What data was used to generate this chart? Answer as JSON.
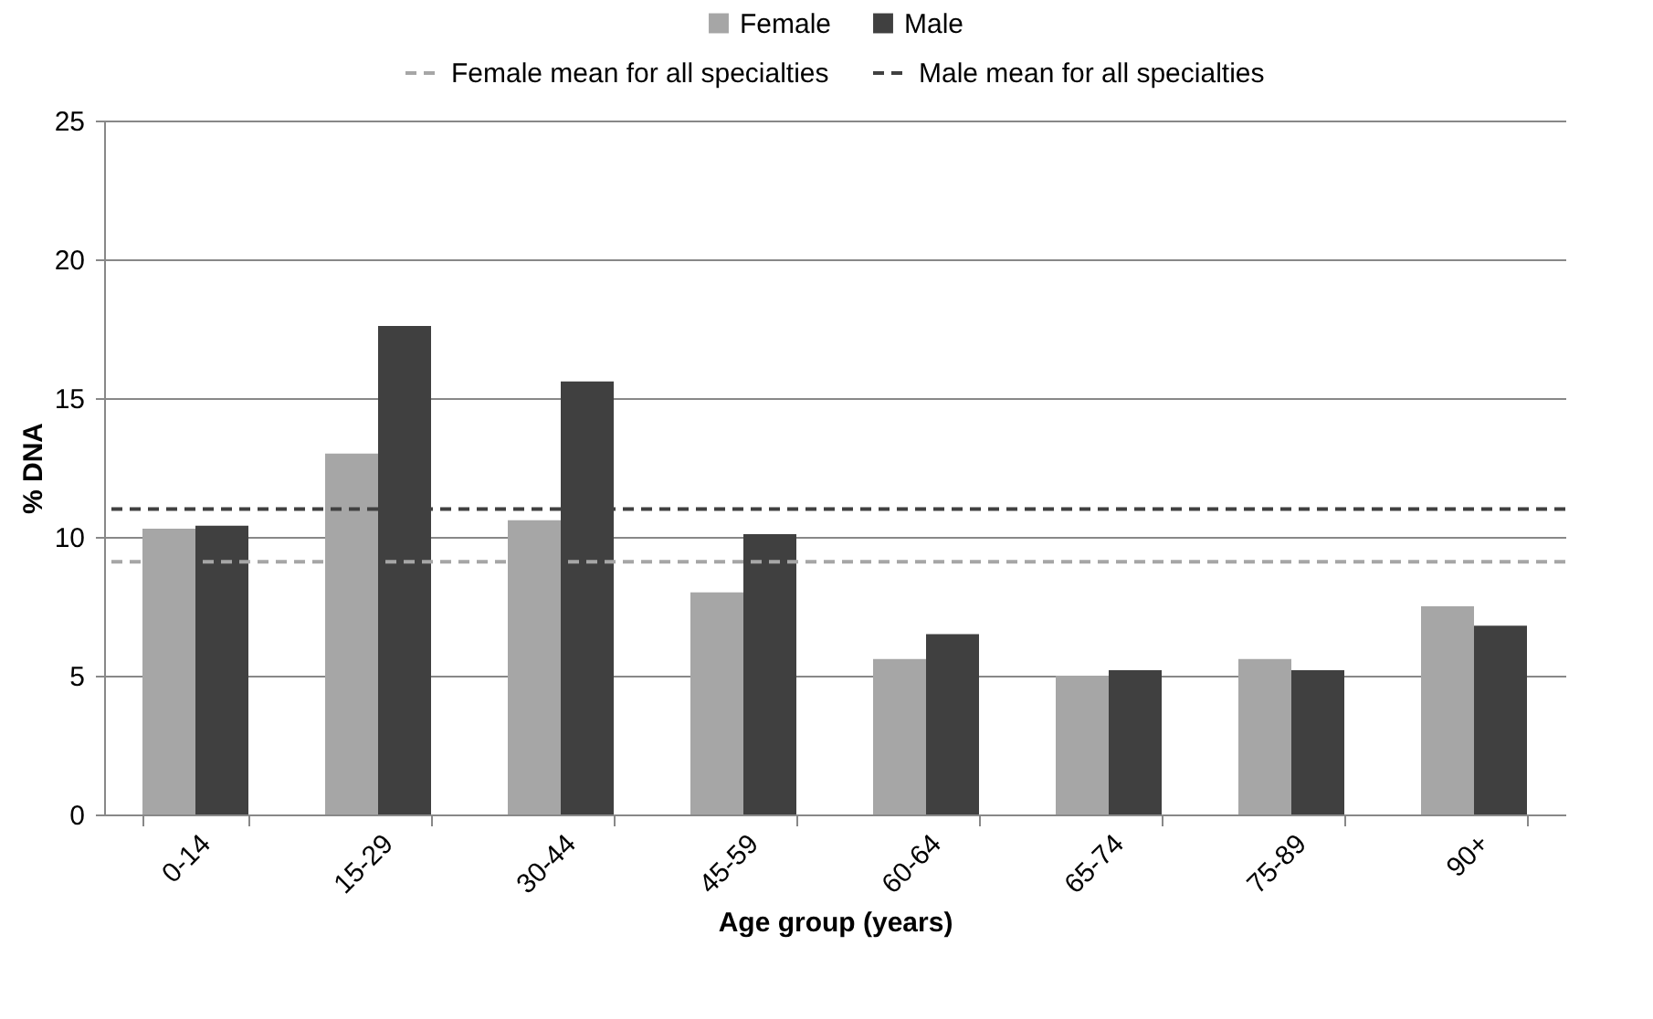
{
  "chart_data": {
    "type": "bar",
    "xlabel": "Age group (years)",
    "ylabel": "% DNA",
    "categories": [
      "0-14",
      "15-29",
      "30-44",
      "45-59",
      "60-64",
      "65-74",
      "75-89",
      "90+"
    ],
    "series": [
      {
        "name": "Female",
        "color": "#a6a6a6",
        "values": [
          10.3,
          13.0,
          10.6,
          8.0,
          5.6,
          5.0,
          5.6,
          7.5
        ]
      },
      {
        "name": "Male",
        "color": "#404040",
        "values": [
          10.4,
          17.6,
          15.6,
          10.1,
          6.5,
          5.2,
          5.2,
          6.8
        ]
      }
    ],
    "ylim": [
      0,
      25
    ],
    "yticks": [
      0,
      5,
      10,
      15,
      20,
      25
    ],
    "grid": "y",
    "legend": "top",
    "ref_lines": [
      {
        "axis": "y",
        "value": 9.1,
        "label": "Female mean for all specialties",
        "color": "#a6a6a6",
        "line_style": "dashed"
      },
      {
        "axis": "y",
        "value": 11.0,
        "label": "Male mean for all specialties",
        "color": "#404040",
        "line_style": "dashed"
      }
    ]
  }
}
